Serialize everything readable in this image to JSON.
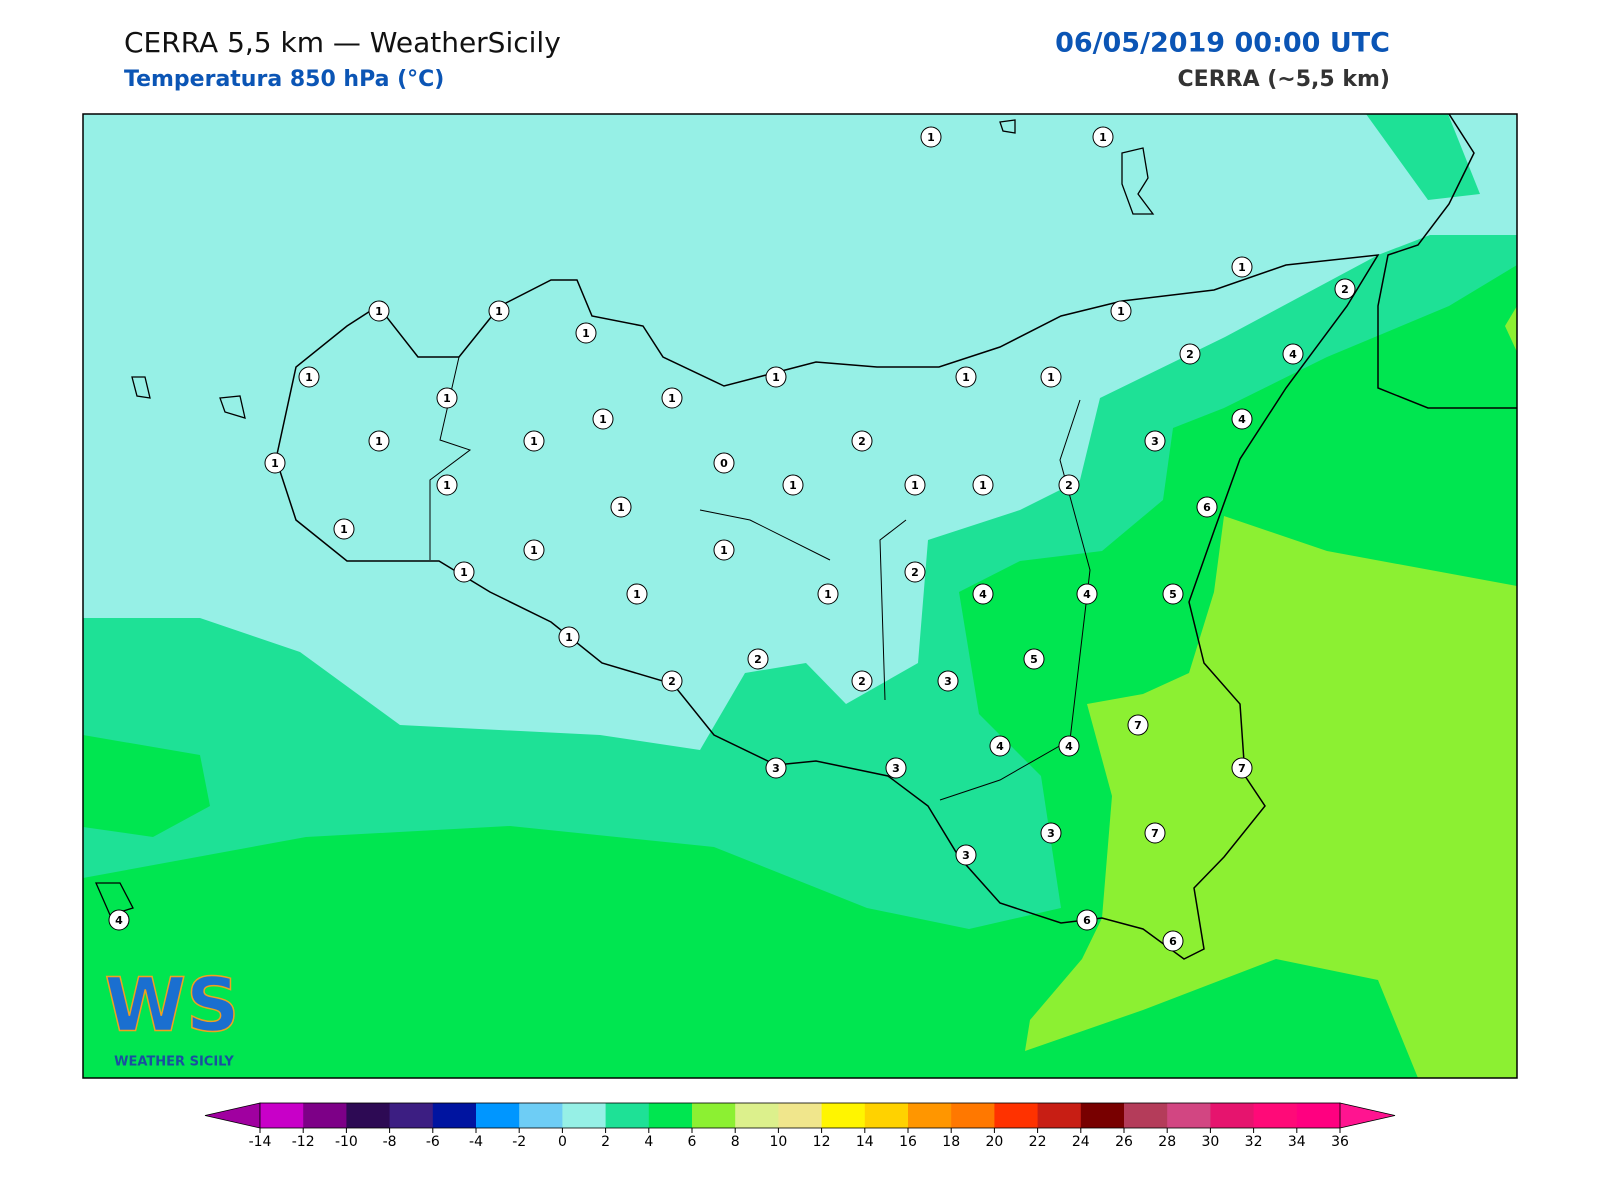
{
  "header": {
    "title": "CERRA 5,5 km — WeatherSicily",
    "subtitle": "Temperatura 850 hPa (°C)",
    "datetime": "06/05/2019 00:00 UTC",
    "model": "CERRA (~5,5 km)"
  },
  "map": {
    "stations": [
      1,
      1,
      1,
      2,
      1,
      1,
      1,
      1,
      1,
      1,
      1,
      1,
      2,
      4,
      1,
      1,
      1,
      4,
      1,
      1,
      2,
      3,
      1,
      0,
      1,
      1,
      1,
      1,
      2,
      1,
      6,
      1,
      1,
      1,
      1,
      2,
      1,
      1,
      4,
      4,
      5,
      1,
      5,
      2,
      2,
      2,
      3,
      7,
      4,
      4,
      3,
      3,
      7,
      3,
      7,
      3,
      4,
      6,
      6
    ]
  },
  "logo": {
    "mark": "WS",
    "name": "WEATHER SICILY"
  },
  "colorbar": {
    "ticks": [
      -14,
      -12,
      -10,
      -8,
      -6,
      -4,
      -2,
      0,
      2,
      4,
      6,
      8,
      10,
      12,
      14,
      16,
      18,
      20,
      22,
      24,
      26,
      28,
      30,
      32,
      34,
      36
    ],
    "colors": [
      "#c800c8",
      "#7d0087",
      "#2d0a54",
      "#3c1e82",
      "#0014a0",
      "#0096ff",
      "#6ecdf5",
      "#96f0e6",
      "#1ee196",
      "#00e650",
      "#8cf032",
      "#dcf08c",
      "#f0e68c",
      "#fff500",
      "#ffd200",
      "#ff9600",
      "#ff7800",
      "#ff3200",
      "#c81e14",
      "#780000",
      "#b43c5a",
      "#d24682",
      "#e6146e",
      "#ff0a78",
      "#ff0080"
    ],
    "under_color": "#a000a0",
    "over_color": "#ff1490"
  }
}
